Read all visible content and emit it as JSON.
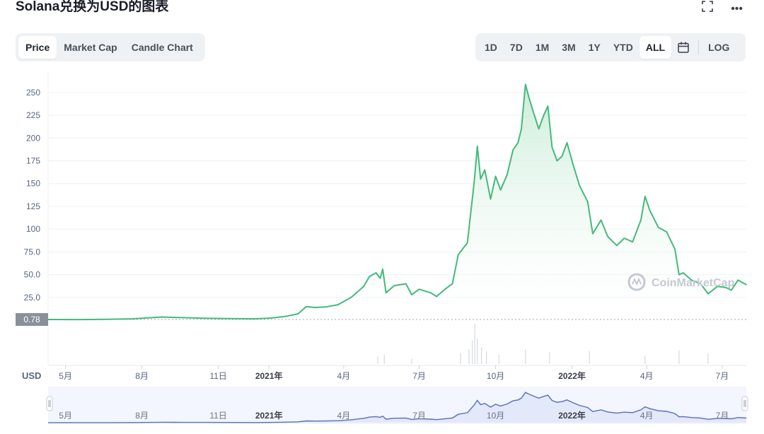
{
  "title": "Solana兑换为USD的图表",
  "header_icons": {
    "fullscreen": "fullscreen-icon",
    "more": "more-icon",
    "more_glyph": "•••"
  },
  "left_tabs": [
    {
      "label": "Price",
      "active": true
    },
    {
      "label": "Market Cap",
      "active": false
    },
    {
      "label": "Candle Chart",
      "active": false
    }
  ],
  "range_tabs": [
    {
      "label": "1D",
      "active": false
    },
    {
      "label": "7D",
      "active": false
    },
    {
      "label": "1M",
      "active": false
    },
    {
      "label": "3M",
      "active": false
    },
    {
      "label": "1Y",
      "active": false
    },
    {
      "label": "YTD",
      "active": false
    },
    {
      "label": "ALL",
      "active": true
    }
  ],
  "calendar_icon": "calendar-icon",
  "log_label": "LOG",
  "currency_label": "USD",
  "watermark": "CoinMarketCap",
  "colors": {
    "line": "#45b97c",
    "fill_top": "#c8ecd6",
    "navigator_line": "#5a6fb5",
    "navigator_fill": "#e3e8fb",
    "price_tag_bg": "#8a8f9a",
    "accent_text": "#222531"
  },
  "chart_data": {
    "type": "area",
    "title": "Solana兑换为USD的图表",
    "ylabel": "",
    "xlabel": "",
    "currency": "USD",
    "log_scale": false,
    "grid": true,
    "y_ticks": [
      "250",
      "225",
      "200",
      "175",
      "150",
      "125",
      "100",
      "75.0",
      "50.0",
      "25.0"
    ],
    "y_tick_values": [
      250,
      225,
      200,
      175,
      150,
      125,
      100,
      75,
      50,
      25
    ],
    "ylim": [
      0,
      260
    ],
    "current_price_label": "0.78",
    "current_price_value": 0.78,
    "x_ticks": [
      {
        "label": "5月",
        "date": "2020-05-01",
        "bold": false
      },
      {
        "label": "8月",
        "date": "2020-08-01",
        "bold": false
      },
      {
        "label": "11日",
        "date": "2020-11-01",
        "bold": false
      },
      {
        "label": "2021年",
        "date": "2021-01-01",
        "bold": true
      },
      {
        "label": "4月",
        "date": "2021-04-01",
        "bold": false
      },
      {
        "label": "7月",
        "date": "2021-07-01",
        "bold": false
      },
      {
        "label": "10月",
        "date": "2021-10-01",
        "bold": false
      },
      {
        "label": "2022年",
        "date": "2022-01-01",
        "bold": true
      },
      {
        "label": "4月",
        "date": "2022-04-01",
        "bold": false
      },
      {
        "label": "7月",
        "date": "2022-07-01",
        "bold": false
      }
    ],
    "xlim": [
      "2020-04-10",
      "2022-07-30"
    ],
    "series": [
      {
        "points": [
          [
            "2020-04-10",
            0.8
          ],
          [
            "2020-05-15",
            0.7
          ],
          [
            "2020-06-20",
            0.9
          ],
          [
            "2020-07-20",
            1.5
          ],
          [
            "2020-08-25",
            3.5
          ],
          [
            "2020-09-10",
            3.0
          ],
          [
            "2020-10-15",
            2.2
          ],
          [
            "2020-11-15",
            1.8
          ],
          [
            "2020-12-15",
            1.5
          ],
          [
            "2021-01-05",
            2.5
          ],
          [
            "2021-01-20",
            4.0
          ],
          [
            "2021-02-05",
            7.0
          ],
          [
            "2021-02-15",
            15.0
          ],
          [
            "2021-02-25",
            14.0
          ],
          [
            "2021-03-10",
            14.5
          ],
          [
            "2021-03-25",
            17.0
          ],
          [
            "2021-04-10",
            25.0
          ],
          [
            "2021-04-25",
            37.0
          ],
          [
            "2021-05-02",
            48.0
          ],
          [
            "2021-05-10",
            52.0
          ],
          [
            "2021-05-15",
            46.0
          ],
          [
            "2021-05-18",
            56.0
          ],
          [
            "2021-05-22",
            30.0
          ],
          [
            "2021-06-01",
            38.0
          ],
          [
            "2021-06-15",
            40.0
          ],
          [
            "2021-06-22",
            28.0
          ],
          [
            "2021-07-01",
            34.0
          ],
          [
            "2021-07-15",
            30.0
          ],
          [
            "2021-07-22",
            26.0
          ],
          [
            "2021-08-01",
            34.0
          ],
          [
            "2021-08-10",
            40.0
          ],
          [
            "2021-08-17",
            72.0
          ],
          [
            "2021-08-28",
            85.0
          ],
          [
            "2021-09-05",
            150.0
          ],
          [
            "2021-09-09",
            191.0
          ],
          [
            "2021-09-13",
            155.0
          ],
          [
            "2021-09-18",
            165.0
          ],
          [
            "2021-09-25",
            133.0
          ],
          [
            "2021-10-01",
            158.0
          ],
          [
            "2021-10-07",
            143.0
          ],
          [
            "2021-10-15",
            160.0
          ],
          [
            "2021-10-22",
            187.0
          ],
          [
            "2021-10-28",
            195.0
          ],
          [
            "2021-11-01",
            210.0
          ],
          [
            "2021-11-06",
            259.0
          ],
          [
            "2021-11-10",
            245.0
          ],
          [
            "2021-11-15",
            230.0
          ],
          [
            "2021-11-22",
            210.0
          ],
          [
            "2021-11-28",
            225.0
          ],
          [
            "2021-12-03",
            235.0
          ],
          [
            "2021-12-08",
            190.0
          ],
          [
            "2021-12-14",
            175.0
          ],
          [
            "2021-12-20",
            180.0
          ],
          [
            "2021-12-26",
            195.0
          ],
          [
            "2022-01-02",
            172.0
          ],
          [
            "2022-01-10",
            148.0
          ],
          [
            "2022-01-20",
            130.0
          ],
          [
            "2022-01-26",
            95.0
          ],
          [
            "2022-02-05",
            110.0
          ],
          [
            "2022-02-13",
            92.0
          ],
          [
            "2022-02-24",
            82.0
          ],
          [
            "2022-03-05",
            90.0
          ],
          [
            "2022-03-15",
            86.0
          ],
          [
            "2022-03-25",
            110.0
          ],
          [
            "2022-03-30",
            136.0
          ],
          [
            "2022-04-05",
            120.0
          ],
          [
            "2022-04-15",
            102.0
          ],
          [
            "2022-04-25",
            97.0
          ],
          [
            "2022-05-05",
            78.0
          ],
          [
            "2022-05-10",
            50.0
          ],
          [
            "2022-05-15",
            52.0
          ],
          [
            "2022-05-25",
            44.0
          ],
          [
            "2022-06-05",
            40.0
          ],
          [
            "2022-06-14",
            29.0
          ],
          [
            "2022-06-25",
            37.0
          ],
          [
            "2022-07-05",
            36.0
          ],
          [
            "2022-07-12",
            33.0
          ],
          [
            "2022-07-20",
            44.0
          ],
          [
            "2022-07-30",
            39.0
          ]
        ]
      }
    ],
    "volume_spikes": [
      [
        "2021-05-12",
        0.18
      ],
      [
        "2021-05-20",
        0.22
      ],
      [
        "2021-06-22",
        0.12
      ],
      [
        "2021-08-20",
        0.25
      ],
      [
        "2021-08-30",
        0.35
      ],
      [
        "2021-09-03",
        0.55
      ],
      [
        "2021-09-06",
        0.95
      ],
      [
        "2021-09-09",
        0.6
      ],
      [
        "2021-09-14",
        0.4
      ],
      [
        "2021-09-20",
        0.3
      ],
      [
        "2021-10-05",
        0.22
      ],
      [
        "2021-11-06",
        0.35
      ],
      [
        "2021-12-05",
        0.28
      ],
      [
        "2022-01-22",
        0.3
      ],
      [
        "2022-03-30",
        0.2
      ],
      [
        "2022-05-10",
        0.32
      ],
      [
        "2022-06-14",
        0.25
      ]
    ]
  }
}
